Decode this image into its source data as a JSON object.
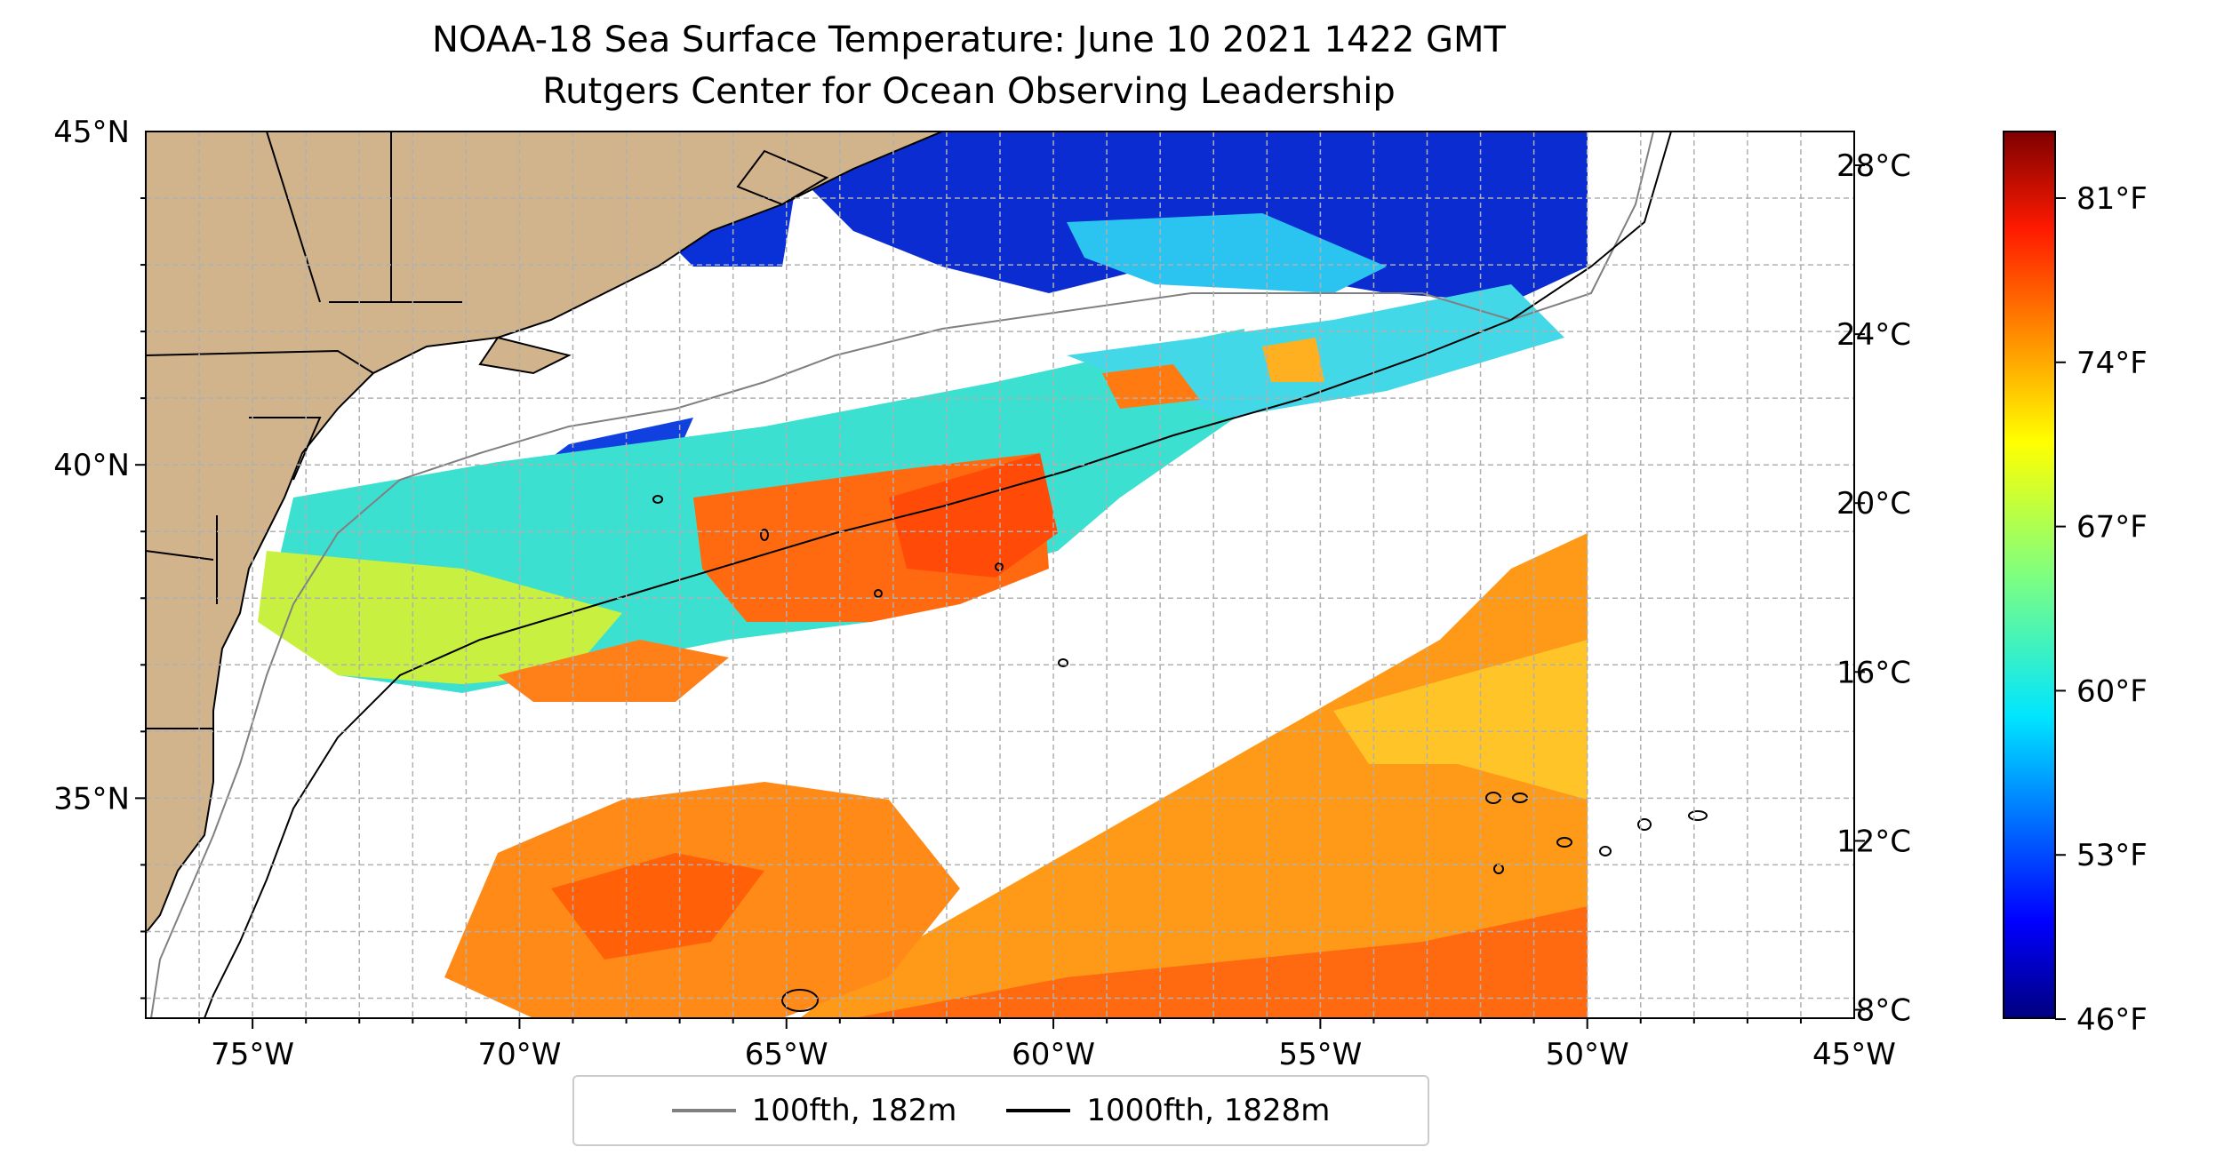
{
  "title": {
    "line1": "NOAA-18 Sea Surface Temperature: June 10 2021 1422 GMT",
    "line2": "Rutgers Center for Ocean Observing Leadership"
  },
  "map": {
    "lon_range": [
      -77,
      -45
    ],
    "lat_range": [
      31.7,
      45
    ],
    "x_ticks": [
      "75°W",
      "70°W",
      "65°W",
      "60°W",
      "55°W",
      "50°W",
      "45°W"
    ],
    "y_ticks": [
      "45°N",
      "40°N",
      "35°N"
    ],
    "gridlines": true,
    "land_color": "#d2b48c",
    "ocean_no_data_color": "#ffffff",
    "data_extent_east_lon": -50
  },
  "colorbar": {
    "colormap": "jet",
    "celsius_ticks": [
      "28°C",
      "24°C",
      "20°C",
      "16°C",
      "12°C",
      "8°C"
    ],
    "fahrenheit_ticks": [
      "81°F",
      "74°F",
      "67°F",
      "60°F",
      "53°F",
      "46°F"
    ],
    "range_c": [
      7.8,
      28.8
    ]
  },
  "legend": {
    "items": [
      {
        "label": "100fth, 182m",
        "color": "#808080"
      },
      {
        "label": "1000fth, 1828m",
        "color": "#000000"
      }
    ]
  }
}
